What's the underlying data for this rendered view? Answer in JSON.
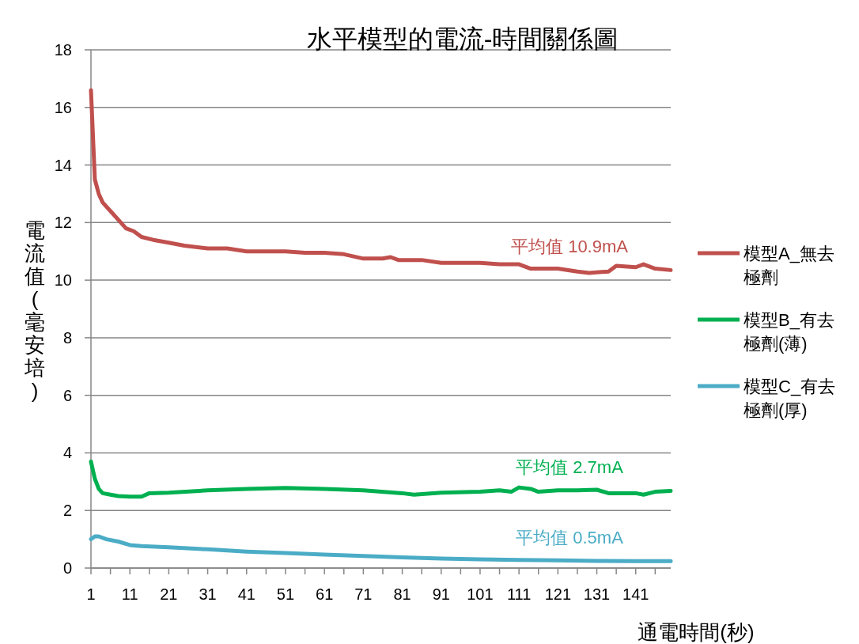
{
  "chart_data": {
    "type": "line",
    "title": "水平模型的電流-時間關係圖",
    "xlabel": "通電時間(秒)",
    "ylabel": "電流值(毫安培)",
    "xlim": [
      1,
      150
    ],
    "xticks": [
      1,
      {
        "value": 6,
        "label": null
      },
      11,
      {
        "value": 16,
        "label": null
      },
      21,
      {
        "value": 26,
        "label": null
      },
      31,
      {
        "value": 36,
        "label": null
      },
      41,
      {
        "value": 46,
        "label": null
      },
      51,
      {
        "value": 56,
        "label": null
      },
      61,
      {
        "value": 66,
        "label": null
      },
      71,
      {
        "value": 76,
        "label": null
      },
      81,
      {
        "value": 86,
        "label": null
      },
      91,
      {
        "value": 96,
        "label": null
      },
      101,
      {
        "value": 106,
        "label": null
      },
      111,
      {
        "value": 116,
        "label": null
      },
      121,
      {
        "value": 126,
        "label": null
      },
      131,
      {
        "value": 136,
        "label": null
      },
      141,
      {
        "value": 146,
        "label": null
      }
    ],
    "ylim": [
      0,
      18
    ],
    "yticks": [
      0,
      2,
      4,
      6,
      8,
      10,
      12,
      14,
      16,
      18
    ],
    "grid": "y",
    "legend": "right",
    "marker": "none",
    "line_style": "solid",
    "series": [
      {
        "name": "模型A_無去極劑",
        "color": "#c0504d",
        "x": [
          1,
          2,
          3,
          4,
          6,
          8,
          10,
          12,
          14,
          17,
          21,
          25,
          31,
          36,
          41,
          46,
          51,
          56,
          61,
          66,
          71,
          76,
          78,
          80,
          86,
          91,
          96,
          101,
          106,
          111,
          114,
          121,
          126,
          129,
          134,
          136,
          141,
          143,
          146,
          150
        ],
        "values": [
          16.6,
          13.5,
          13.0,
          12.7,
          12.4,
          12.1,
          11.8,
          11.7,
          11.5,
          11.4,
          11.3,
          11.2,
          11.1,
          11.1,
          11.0,
          11.0,
          11.0,
          10.95,
          10.95,
          10.9,
          10.75,
          10.75,
          10.8,
          10.7,
          10.7,
          10.6,
          10.6,
          10.6,
          10.55,
          10.55,
          10.4,
          10.4,
          10.3,
          10.25,
          10.3,
          10.5,
          10.45,
          10.55,
          10.4,
          10.35
        ]
      },
      {
        "name": "模型B_有去極劑(薄)",
        "color": "#00b050",
        "x": [
          1,
          2,
          3,
          4,
          6,
          8,
          11,
          14,
          16,
          21,
          31,
          41,
          51,
          61,
          71,
          81,
          84,
          91,
          101,
          106,
          109,
          111,
          114,
          116,
          121,
          126,
          131,
          134,
          141,
          143,
          146,
          150
        ],
        "values": [
          3.7,
          3.1,
          2.75,
          2.6,
          2.55,
          2.5,
          2.48,
          2.48,
          2.6,
          2.62,
          2.7,
          2.75,
          2.78,
          2.75,
          2.7,
          2.6,
          2.55,
          2.62,
          2.65,
          2.7,
          2.65,
          2.8,
          2.75,
          2.65,
          2.7,
          2.7,
          2.72,
          2.6,
          2.6,
          2.55,
          2.65,
          2.68
        ]
      },
      {
        "name": "模型C_有去極劑(厚)",
        "color": "#4bacc6",
        "x": [
          1,
          2,
          3,
          5,
          8,
          11,
          14,
          21,
          31,
          41,
          51,
          61,
          71,
          81,
          91,
          101,
          111,
          121,
          131,
          141,
          150
        ],
        "values": [
          1.0,
          1.1,
          1.1,
          1.0,
          0.92,
          0.8,
          0.76,
          0.72,
          0.65,
          0.57,
          0.52,
          0.47,
          0.42,
          0.37,
          0.33,
          0.3,
          0.28,
          0.27,
          0.25,
          0.24,
          0.24
        ]
      }
    ],
    "annotations": [
      "平均值 10.9mA",
      "平均值 2.7mA",
      "平均值 0.5mA"
    ]
  }
}
